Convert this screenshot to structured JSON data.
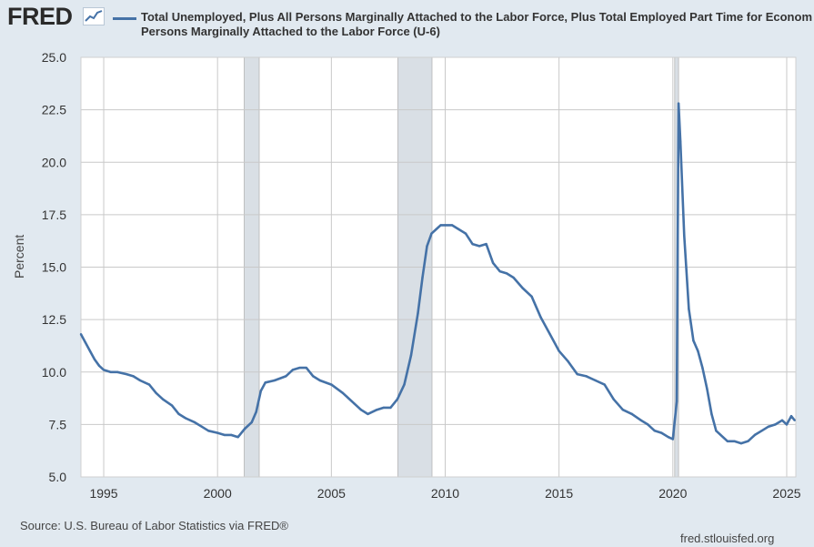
{
  "header": {
    "logo_text": "FRED",
    "series_title_line1": "Total Unemployed, Plus All Persons Marginally Attached to the Labor Force, Plus Total Employed Part Time for Econom",
    "series_title_line2": "Persons Marginally Attached to the Labor Force (U-6)"
  },
  "footer": {
    "source": "Source: U.S. Bureau of Labor Statistics via FRED®",
    "site": "fred.stlouisfed.org"
  },
  "colors": {
    "line": "#4572a7",
    "recession": "#d9dfe5",
    "background": "#e1e9f0",
    "plot": "#ffffff",
    "grid": "#c9c9c9"
  },
  "chart_data": {
    "type": "line",
    "ylabel": "Percent",
    "xlim": [
      1994.0,
      2025.4
    ],
    "ylim": [
      5.0,
      25.0
    ],
    "yticks": [
      "25.0",
      "22.5",
      "20.0",
      "17.5",
      "15.0",
      "12.5",
      "10.0",
      "7.5",
      "5.0"
    ],
    "xticks": [
      "1995",
      "2000",
      "2005",
      "2010",
      "2015",
      "2020",
      "2025"
    ],
    "grid": true,
    "recessions": [
      [
        2001.17,
        2001.83
      ],
      [
        2007.92,
        2009.42
      ],
      [
        2020.08,
        2020.25
      ]
    ],
    "series": [
      {
        "x": [
          1994.0,
          1994.2,
          1994.4,
          1994.6,
          1994.8,
          1995.0,
          1995.3,
          1995.6,
          1996.0,
          1996.3,
          1996.6,
          1997.0,
          1997.3,
          1997.6,
          1998.0,
          1998.3,
          1998.6,
          1999.0,
          1999.3,
          1999.6,
          2000.0,
          2000.3,
          2000.6,
          2000.9,
          2001.2,
          2001.5,
          2001.7,
          2001.9,
          2002.1,
          2002.5,
          2003.0,
          2003.3,
          2003.6,
          2003.9,
          2004.2,
          2004.5,
          2005.0,
          2005.5,
          2006.0,
          2006.3,
          2006.6,
          2007.0,
          2007.3,
          2007.6,
          2007.9,
          2008.2,
          2008.5,
          2008.8,
          2009.0,
          2009.2,
          2009.4,
          2009.6,
          2009.8,
          2010.0,
          2010.3,
          2010.6,
          2010.9,
          2011.2,
          2011.5,
          2011.8,
          2012.1,
          2012.4,
          2012.7,
          2013.0,
          2013.4,
          2013.8,
          2014.2,
          2014.6,
          2015.0,
          2015.4,
          2015.8,
          2016.2,
          2016.6,
          2017.0,
          2017.4,
          2017.8,
          2018.2,
          2018.6,
          2018.9,
          2019.2,
          2019.5,
          2019.8,
          2020.0,
          2020.17,
          2020.25,
          2020.33,
          2020.5,
          2020.7,
          2020.9,
          2021.1,
          2021.3,
          2021.5,
          2021.7,
          2021.9,
          2022.1,
          2022.4,
          2022.7,
          2023.0,
          2023.3,
          2023.6,
          2023.9,
          2024.2,
          2024.5,
          2024.8,
          2025.0,
          2025.2,
          2025.35
        ],
        "values": [
          11.8,
          11.4,
          11.0,
          10.6,
          10.3,
          10.1,
          10.0,
          10.0,
          9.9,
          9.8,
          9.6,
          9.4,
          9.0,
          8.7,
          8.4,
          8.0,
          7.8,
          7.6,
          7.4,
          7.2,
          7.1,
          7.0,
          7.0,
          6.9,
          7.3,
          7.6,
          8.1,
          9.1,
          9.5,
          9.6,
          9.8,
          10.1,
          10.2,
          10.2,
          9.8,
          9.6,
          9.4,
          9.0,
          8.5,
          8.2,
          8.0,
          8.2,
          8.3,
          8.3,
          8.7,
          9.4,
          10.8,
          12.8,
          14.5,
          16.0,
          16.6,
          16.8,
          17.0,
          17.0,
          17.0,
          16.8,
          16.6,
          16.1,
          16.0,
          16.1,
          15.2,
          14.8,
          14.7,
          14.5,
          14.0,
          13.6,
          12.6,
          11.8,
          11.0,
          10.5,
          9.9,
          9.8,
          9.6,
          9.4,
          8.7,
          8.2,
          8.0,
          7.7,
          7.5,
          7.2,
          7.1,
          6.9,
          6.8,
          8.6,
          22.8,
          21.0,
          16.5,
          13.0,
          11.5,
          11.0,
          10.2,
          9.2,
          8.0,
          7.2,
          7.0,
          6.7,
          6.7,
          6.6,
          6.7,
          7.0,
          7.2,
          7.4,
          7.5,
          7.7,
          7.5,
          7.9,
          7.7
        ]
      }
    ]
  }
}
